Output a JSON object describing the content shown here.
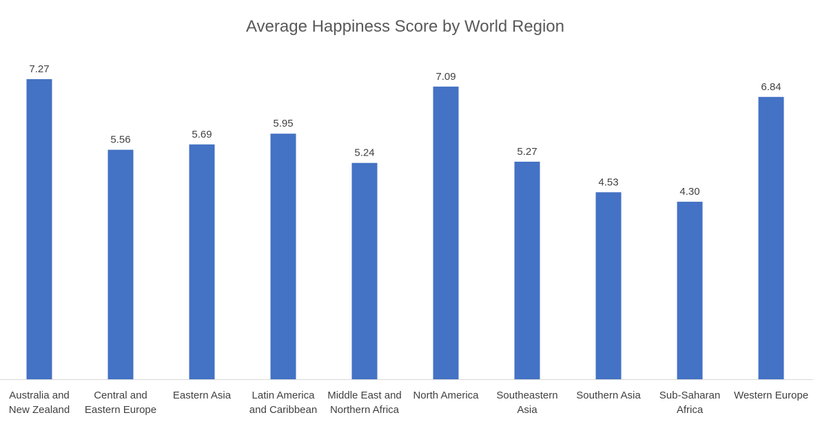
{
  "chart_data": {
    "type": "bar",
    "title": "Average Happiness Score by World Region",
    "xlabel": "",
    "ylabel": "",
    "categories": [
      [
        "Australia and",
        "New Zealand"
      ],
      [
        "Central and",
        "Eastern Europe"
      ],
      [
        "Eastern Asia"
      ],
      [
        "Latin America",
        "and Caribbean"
      ],
      [
        "Middle East and",
        "Northern Africa"
      ],
      [
        "North America"
      ],
      [
        "Southeastern",
        "Asia"
      ],
      [
        "Southern Asia"
      ],
      [
        "Sub-Saharan",
        "Africa"
      ],
      [
        "Western Europe"
      ]
    ],
    "values": [
      7.27,
      5.56,
      5.69,
      5.95,
      5.24,
      7.09,
      5.27,
      4.53,
      4.3,
      6.84
    ],
    "data_labels": [
      "7.27",
      "5.56",
      "5.69",
      "5.95",
      "5.24",
      "7.09",
      "5.27",
      "4.53",
      "4.30",
      "6.84"
    ],
    "ylim": [
      0,
      7.27
    ],
    "grid": false,
    "legend": "none",
    "bar_color": "#4472C4",
    "baseline_color": "#D9D9D9"
  }
}
